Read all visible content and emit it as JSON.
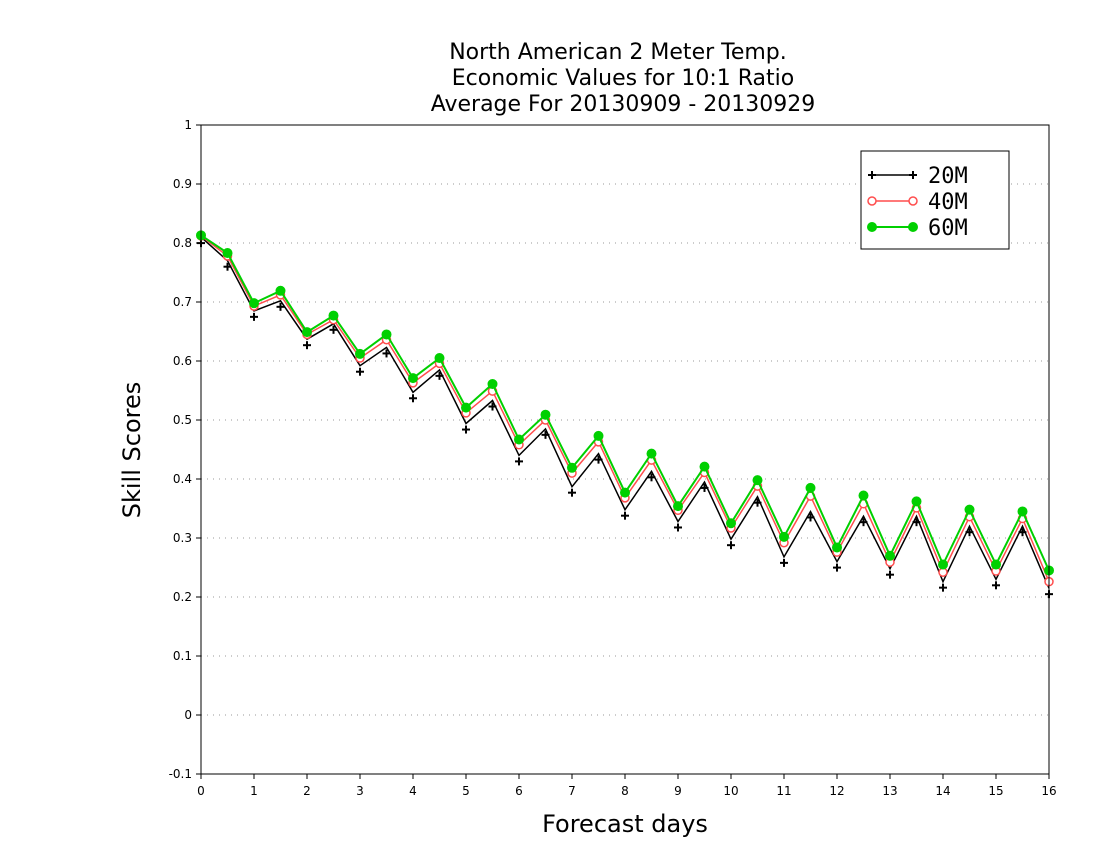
{
  "chart_data": {
    "type": "line",
    "title": [
      "North American 2 Meter Temp.",
      "Economic Values for 10:1 Ratio",
      "Average For 20130909 - 20130929"
    ],
    "xlabel": "Forecast days",
    "ylabel": "Skill Scores",
    "xlim": [
      0,
      16
    ],
    "ylim": [
      -0.1,
      1
    ],
    "xticks": [
      "0",
      "1",
      "2",
      "3",
      "4",
      "5",
      "6",
      "7",
      "8",
      "9",
      "10",
      "11",
      "12",
      "13",
      "14",
      "15",
      "16"
    ],
    "yticks": [
      "-0.1",
      "0",
      "0.1",
      "0.2",
      "0.3",
      "0.4",
      "0.5",
      "0.6",
      "0.7",
      "0.8",
      "0.9",
      "1"
    ],
    "grid": "horizontal dotted",
    "legend_position": "top-right",
    "x": [
      0,
      0.5,
      1,
      1.5,
      2,
      2.5,
      3,
      3.5,
      4,
      4.5,
      5,
      5.5,
      6,
      6.5,
      7,
      7.5,
      8,
      8.5,
      9,
      9.5,
      10,
      10.5,
      11,
      11.5,
      12,
      12.5,
      13,
      13.5,
      14,
      14.5,
      15,
      15.5,
      16
    ],
    "series": [
      {
        "name": "20M",
        "color": "#000000",
        "marker": "plus",
        "values": [
          0.81,
          0.77,
          0.685,
          0.702,
          0.637,
          0.663,
          0.592,
          0.623,
          0.547,
          0.585,
          0.494,
          0.533,
          0.44,
          0.485,
          0.387,
          0.443,
          0.348,
          0.413,
          0.328,
          0.395,
          0.298,
          0.37,
          0.268,
          0.345,
          0.26,
          0.337,
          0.248,
          0.337,
          0.226,
          0.32,
          0.23,
          0.32,
          0.215
        ]
      },
      {
        "name": "40M",
        "color": "#ff4d4d",
        "marker": "open-circle",
        "values": [
          0.812,
          0.778,
          0.693,
          0.712,
          0.645,
          0.67,
          0.605,
          0.636,
          0.563,
          0.596,
          0.512,
          0.549,
          0.458,
          0.5,
          0.41,
          0.463,
          0.368,
          0.432,
          0.347,
          0.411,
          0.317,
          0.388,
          0.292,
          0.371,
          0.276,
          0.358,
          0.259,
          0.351,
          0.242,
          0.336,
          0.244,
          0.333,
          0.226
        ]
      },
      {
        "name": "60M",
        "color": "#00d000",
        "marker": "filled-circle",
        "values": [
          0.813,
          0.783,
          0.698,
          0.719,
          0.649,
          0.677,
          0.612,
          0.645,
          0.571,
          0.605,
          0.521,
          0.561,
          0.467,
          0.509,
          0.419,
          0.473,
          0.377,
          0.443,
          0.354,
          0.421,
          0.325,
          0.398,
          0.302,
          0.385,
          0.284,
          0.372,
          0.27,
          0.362,
          0.255,
          0.348,
          0.255,
          0.345,
          0.245
        ]
      }
    ]
  }
}
